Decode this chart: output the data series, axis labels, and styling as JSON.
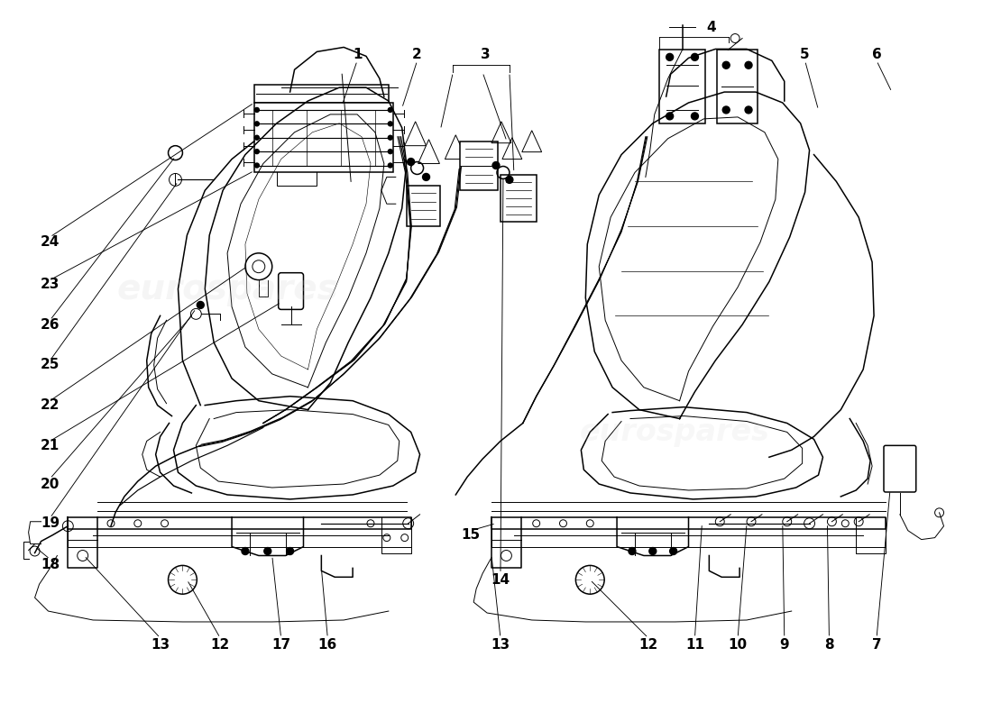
{
  "bg_color": "#ffffff",
  "line_color": "#000000",
  "fig_width": 11.0,
  "fig_height": 8.0,
  "dpi": 100,
  "lw_thin": 0.7,
  "lw_med": 1.1,
  "lw_thick": 1.6,
  "label_fs": 11
}
